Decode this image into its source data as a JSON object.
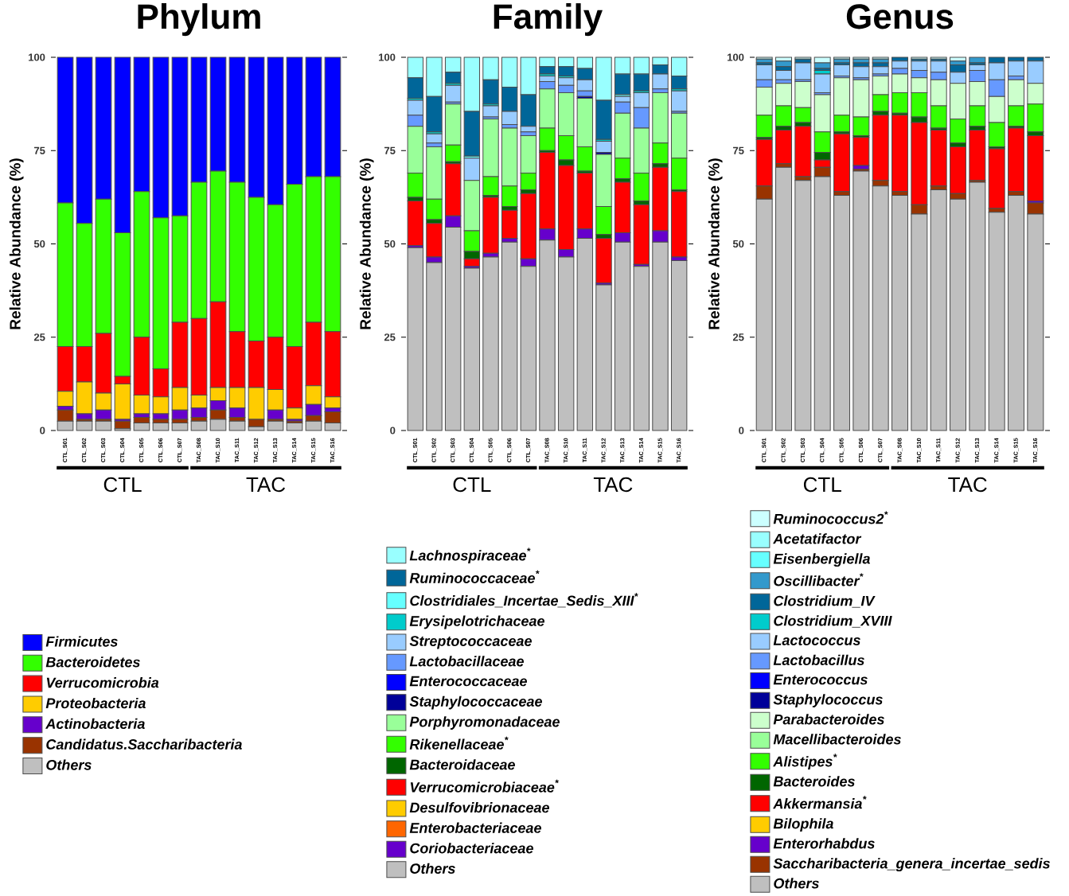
{
  "chart_data": [
    {
      "type": "bar",
      "stacked": true,
      "title": "Phylum",
      "ylabel": "Relative Abundance (%)",
      "ylim": [
        0,
        100
      ],
      "yticks": [
        0,
        25,
        50,
        75,
        100
      ],
      "legend": "bottom",
      "annotations": [
        "CTL",
        "TAC"
      ],
      "categories": [
        "CTL_S01",
        "CTL_S02",
        "CTL_S03",
        "CTL_S04",
        "CTL_S05",
        "CTL_S06",
        "CTL_S07",
        "TAC_S08",
        "TAC_S10",
        "TAC_S11",
        "TAC_S12",
        "TAC_S13",
        "TAC_S14",
        "TAC_S15",
        "TAC_S16"
      ],
      "series": [
        {
          "name": "Others",
          "color": "#bfbfbf",
          "values": [
            2.5,
            2.5,
            2.5,
            0.5,
            2,
            2,
            2,
            2.5,
            3,
            2.5,
            1,
            2.5,
            2,
            2.5,
            2
          ]
        },
        {
          "name": "Candidatus.Saccharibacteria",
          "color": "#993300",
          "values": [
            3,
            0.5,
            0.5,
            2,
            1.5,
            1,
            1,
            1,
            2.5,
            1,
            2,
            0.5,
            0.5,
            1.5,
            3
          ]
        },
        {
          "name": "Actinobacteria",
          "color": "#6600cc",
          "values": [
            1,
            1.5,
            2.5,
            0.5,
            1,
            1.5,
            2.5,
            2.5,
            2.5,
            2.5,
            0,
            2.5,
            0.5,
            3,
            1
          ]
        },
        {
          "name": "Proteobacteria",
          "color": "#ffcc00",
          "values": [
            4,
            8.5,
            4.5,
            9.5,
            5,
            4.5,
            6,
            3.5,
            3.5,
            5.5,
            8.5,
            5.5,
            3,
            5,
            3
          ]
        },
        {
          "name": "Verrucomicrobia",
          "color": "#ff0000",
          "values": [
            12,
            9.5,
            16,
            2,
            15.5,
            7.5,
            17.5,
            20.5,
            23,
            15,
            12.5,
            14,
            16.5,
            17,
            17.5
          ]
        },
        {
          "name": "Bacteroidetes",
          "color": "#33ff00",
          "values": [
            38.5,
            33,
            36,
            38.5,
            39,
            40.5,
            28.5,
            36.5,
            35,
            40,
            38.5,
            35.5,
            43.5,
            39,
            41.5
          ]
        },
        {
          "name": "Firmicutes",
          "color": "#0000ff",
          "values": [
            39,
            44.5,
            38,
            47,
            36,
            43,
            42.5,
            33.5,
            30.5,
            33.5,
            37.5,
            39.5,
            34,
            32,
            32
          ]
        }
      ]
    },
    {
      "type": "bar",
      "stacked": true,
      "title": "Family",
      "ylabel": "Relative Abundance (%)",
      "ylim": [
        0,
        100
      ],
      "yticks": [
        0,
        25,
        50,
        75,
        100
      ],
      "legend": "bottom",
      "annotations": [
        "CTL",
        "TAC"
      ],
      "categories": [
        "CTL_S01",
        "CTL_S02",
        "CTL_S03",
        "CTL_S04",
        "CTL_S05",
        "CTL_S06",
        "CTL_S07",
        "TAC_S08",
        "TAC_S10",
        "TAC_S11",
        "TAC_S12",
        "TAC_S13",
        "TAC_S14",
        "TAC_S15",
        "TAC_S16"
      ],
      "series": [
        {
          "name": "Others",
          "color": "#bfbfbf",
          "values": [
            49,
            45,
            54.5,
            43.5,
            46.5,
            50.5,
            44,
            51,
            46.5,
            51.5,
            39,
            50.5,
            44,
            50.5,
            45.5
          ]
        },
        {
          "name": "Coriobacteriaceae",
          "color": "#6600cc",
          "values": [
            0.5,
            1.5,
            3,
            0.5,
            1,
            1,
            2,
            3,
            2,
            2.5,
            0.5,
            2.5,
            0.5,
            3,
            1
          ]
        },
        {
          "name": "Enterobacteriaceae",
          "color": "#ff6600",
          "values": [
            0,
            0,
            0,
            0,
            0,
            0,
            0,
            0,
            0,
            0,
            0,
            0,
            0,
            0,
            0
          ]
        },
        {
          "name": "Desulfovibrionaceae",
          "color": "#ffcc00",
          "values": [
            0,
            0,
            0,
            0,
            0,
            0,
            0,
            0,
            0,
            0,
            0,
            0,
            0,
            0,
            0
          ]
        },
        {
          "name": "Verrucomicrobiaceae$^{*}$",
          "color": "#ff0000",
          "values": [
            12,
            9,
            14,
            2,
            15,
            7.5,
            17.5,
            20.5,
            22.5,
            15,
            12,
            13.5,
            16,
            17,
            17.5
          ]
        },
        {
          "name": "Bacteroidaceae",
          "color": "#006600",
          "values": [
            1,
            1,
            0.5,
            2,
            0.5,
            1,
            1,
            0.5,
            1.5,
            0.5,
            1,
            1,
            1,
            1,
            0.5
          ]
        },
        {
          "name": "Rikenellaceae$^{*}$",
          "color": "#33ff00",
          "values": [
            6.5,
            5.5,
            4.5,
            5.5,
            5,
            5.5,
            4.5,
            6,
            6.5,
            6.5,
            7.5,
            5.5,
            7.5,
            5.5,
            8.5
          ]
        },
        {
          "name": "Porphyromonadaceae",
          "color": "#99ff99",
          "values": [
            12.5,
            14,
            11,
            13.5,
            15.5,
            15.5,
            10,
            10.5,
            11.5,
            13,
            14,
            12,
            12,
            13.5,
            12
          ]
        },
        {
          "name": "Staphylococcaceae",
          "color": "#000099",
          "values": [
            0,
            0,
            0,
            0,
            0,
            0,
            0,
            0,
            0,
            0.5,
            0.5,
            0,
            0,
            0,
            0
          ]
        },
        {
          "name": "Enterococcaceae",
          "color": "#0000ff",
          "values": [
            0,
            0,
            0,
            0,
            0,
            0,
            0,
            0,
            0,
            0,
            0,
            0,
            0,
            0,
            0
          ]
        },
        {
          "name": "Lactobacillaceae",
          "color": "#6699ff",
          "values": [
            3,
            1,
            0.5,
            0,
            0.5,
            1,
            1,
            2,
            2,
            1.5,
            0,
            3,
            5.5,
            1,
            0.5
          ]
        },
        {
          "name": "Streptococcaceae",
          "color": "#99ccff",
          "values": [
            4,
            2.5,
            4.5,
            6,
            3,
            3.5,
            1.5,
            1.5,
            2,
            3,
            3,
            1.5,
            4,
            4,
            5.5
          ]
        },
        {
          "name": "Erysipelotrichaceae",
          "color": "#00cccc",
          "values": [
            0.5,
            0.5,
            0.5,
            0,
            0.5,
            0,
            0,
            0.5,
            0.5,
            0,
            0.5,
            0,
            0.5,
            0,
            0.5
          ]
        },
        {
          "name": "Clostridiales_Incertae_Sedis_XIII$^{*}$",
          "color": "#66ffff",
          "values": [
            0,
            0,
            0,
            0.5,
            0,
            0,
            0,
            0,
            0,
            0,
            0,
            0.5,
            0,
            0,
            0
          ]
        },
        {
          "name": "Ruminococcaceae$^{*}$",
          "color": "#006699",
          "values": [
            5.5,
            9.5,
            3,
            12,
            6.5,
            6.5,
            8.5,
            2,
            2.5,
            3,
            10.5,
            5.5,
            4.5,
            2.5,
            3.5
          ]
        },
        {
          "name": "Lachnospiraceae$^{*}$",
          "color": "#99ffff",
          "values": [
            5.5,
            10.5,
            4,
            14.5,
            6,
            8,
            10,
            2.5,
            2.5,
            3,
            11.5,
            4.5,
            4.5,
            2,
            5
          ]
        }
      ]
    },
    {
      "type": "bar",
      "stacked": true,
      "title": "Genus",
      "ylabel": "Relative Abundance (%)",
      "ylim": [
        0,
        100
      ],
      "yticks": [
        0,
        25,
        50,
        75,
        100
      ],
      "legend": "bottom",
      "annotations": [
        "CTL",
        "TAC"
      ],
      "categories": [
        "CTL_S01",
        "CTL_S02",
        "CTL_S03",
        "CTL_S04",
        "CTL_S05",
        "CTL_S06",
        "CTL_S07",
        "TAC_S08",
        "TAC_S10",
        "TAC_S11",
        "TAC_S12",
        "TAC_S13",
        "TAC_S14",
        "TAC_S15",
        "TAC_S16"
      ],
      "series": [
        {
          "name": "Others",
          "color": "#bfbfbf",
          "values": [
            62,
            70.5,
            67,
            68,
            63,
            69.5,
            65.5,
            63,
            58,
            64.5,
            62,
            66.5,
            58.5,
            63,
            58
          ]
        },
        {
          "name": "Saccharibacteria_genera_incertae_sedis",
          "color": "#993300",
          "values": [
            3.5,
            1,
            1,
            2.5,
            1,
            0.5,
            1.5,
            1,
            2.5,
            1,
            1.5,
            0.5,
            1,
            1,
            3
          ]
        },
        {
          "name": "Enterorhabdus",
          "color": "#6600cc",
          "values": [
            0,
            0,
            0,
            0,
            0,
            1,
            0,
            0,
            0,
            0,
            0,
            0,
            0,
            0,
            0.5
          ]
        },
        {
          "name": "Bilophila",
          "color": "#ffcc00",
          "values": [
            0,
            0,
            0,
            0,
            0,
            0,
            0,
            0,
            0,
            0,
            0,
            0,
            0,
            0,
            0
          ]
        },
        {
          "name": "Akkermansia$^{*}$",
          "color": "#ff0000",
          "values": [
            12.5,
            9,
            13.5,
            2,
            15.5,
            7.5,
            17.5,
            20.5,
            22,
            15,
            12.5,
            13.5,
            16,
            17,
            17.5
          ]
        },
        {
          "name": "Bacteroides",
          "color": "#006600",
          "values": [
            0.5,
            1,
            1,
            2,
            0.5,
            0.5,
            1,
            0.5,
            1.5,
            0.5,
            1,
            1,
            0.5,
            0.5,
            1
          ]
        },
        {
          "name": "Alistipes$^{*}$",
          "color": "#33ff00",
          "values": [
            6,
            5.5,
            4,
            5.5,
            4.5,
            5,
            4.5,
            5.5,
            6.5,
            6,
            6.5,
            5.5,
            6.5,
            5.5,
            7.5
          ]
        },
        {
          "name": "Macellibacteroides",
          "color": "#99ff99",
          "values": [
            0,
            0,
            0,
            0,
            0,
            0,
            0,
            0,
            0,
            0,
            0,
            0,
            0,
            0,
            0
          ]
        },
        {
          "name": "Parabacteroides",
          "color": "#ccffcc",
          "values": [
            7.5,
            6,
            7,
            10,
            10,
            10,
            5,
            5,
            4,
            7,
            9.5,
            6.5,
            7,
            7,
            5.5
          ]
        },
        {
          "name": "Staphylococcus",
          "color": "#000099",
          "values": [
            0,
            0,
            0,
            0,
            0,
            0,
            0,
            0,
            0,
            0,
            0,
            0,
            0,
            0,
            0
          ]
        },
        {
          "name": "Enterococcus",
          "color": "#0000ff",
          "values": [
            0,
            0,
            0,
            0,
            0,
            0,
            0,
            0,
            0,
            0,
            0,
            0,
            0,
            0,
            0
          ]
        },
        {
          "name": "Lactobacillus",
          "color": "#6699ff",
          "values": [
            2,
            1,
            0.5,
            0.5,
            0.5,
            0.5,
            0.5,
            1.5,
            2,
            2,
            0,
            3,
            4.5,
            1,
            0
          ]
        },
        {
          "name": "Lactococcus",
          "color": "#99ccff",
          "values": [
            4,
            2.5,
            4.5,
            5,
            3,
            3,
            2,
            2,
            2.5,
            3,
            3,
            1.5,
            4.5,
            4,
            6
          ]
        },
        {
          "name": "Clostridium_XVIII",
          "color": "#00cccc",
          "values": [
            0,
            0,
            0,
            1,
            0,
            0,
            0,
            0,
            0,
            0,
            0,
            0,
            0,
            0,
            0
          ]
        },
        {
          "name": "Clostridium_IV",
          "color": "#006699",
          "values": [
            0.5,
            1,
            1,
            0.5,
            0.5,
            1,
            1,
            1,
            0.5,
            0.5,
            2,
            0.5,
            1.5,
            1,
            1
          ]
        },
        {
          "name": "Oscillibacter$^{*}$",
          "color": "#3399cc",
          "values": [
            1,
            1.5,
            0,
            1.5,
            1,
            1,
            1,
            0,
            0,
            0,
            1,
            1.5,
            0,
            0,
            0
          ]
        },
        {
          "name": "Eisenbergiella",
          "color": "#66ffff",
          "values": [
            0,
            0,
            0,
            0,
            0,
            0,
            0,
            0,
            0,
            0,
            0,
            0,
            0,
            0,
            0
          ]
        },
        {
          "name": "Acetatifactor",
          "color": "#99ffff",
          "values": [
            0,
            0,
            0,
            0,
            0,
            0,
            0,
            0,
            0,
            0,
            0,
            0,
            0,
            0,
            0
          ]
        },
        {
          "name": "Ruminococcus2$^{*}$",
          "color": "#ccffff",
          "values": [
            0.5,
            1,
            0.5,
            1.5,
            0.5,
            0.5,
            0.5,
            0,
            0.5,
            0.5,
            1,
            0,
            0,
            0,
            0
          ]
        }
      ]
    }
  ]
}
